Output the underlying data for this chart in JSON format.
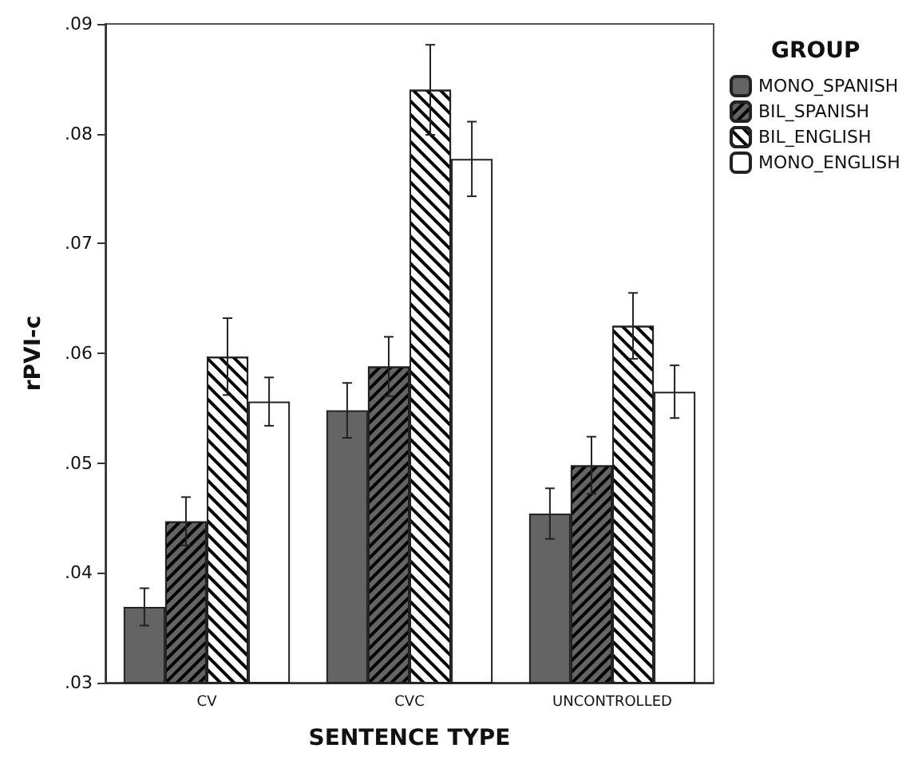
{
  "chart_data": {
    "type": "bar",
    "xlabel": "SENTENCE TYPE",
    "ylabel": "rPVI-c",
    "legend_title": "GROUP",
    "categories": [
      "CV",
      "CVC",
      "UNCONTROLLED"
    ],
    "series": [
      {
        "name": "MONO_SPANISH",
        "color": "#646464",
        "values": [
          0.0369,
          0.0548,
          0.0454
        ],
        "errors": [
          0.0017,
          0.0025,
          0.0023
        ]
      },
      {
        "name": "BIL_SPANISH",
        "color": "#646464",
        "values": [
          0.0447,
          0.0588,
          0.0498
        ],
        "errors": [
          0.0022,
          0.0027,
          0.0026
        ]
      },
      {
        "name": "BIL_ENGLISH",
        "color": "#ffffff",
        "values": [
          0.0597,
          0.084,
          0.0625
        ],
        "errors": [
          0.0035,
          0.0041,
          0.003
        ]
      },
      {
        "name": "MONO_ENGLISH",
        "color": "#ffffff",
        "values": [
          0.0556,
          0.0777,
          0.0565
        ],
        "errors": [
          0.0022,
          0.0034,
          0.0024
        ]
      }
    ],
    "ylim": [
      0.03,
      0.09
    ],
    "yticks": [
      {
        "value": 0.03,
        "label": ".03"
      },
      {
        "value": 0.04,
        "label": ".04"
      },
      {
        "value": 0.05,
        "label": ".05"
      },
      {
        "value": 0.06,
        "label": ".06"
      },
      {
        "value": 0.07,
        "label": ".07"
      },
      {
        "value": 0.08,
        "label": ".08"
      },
      {
        "value": 0.09,
        "label": ".09"
      }
    ],
    "grid": false,
    "legend": "top right"
  }
}
